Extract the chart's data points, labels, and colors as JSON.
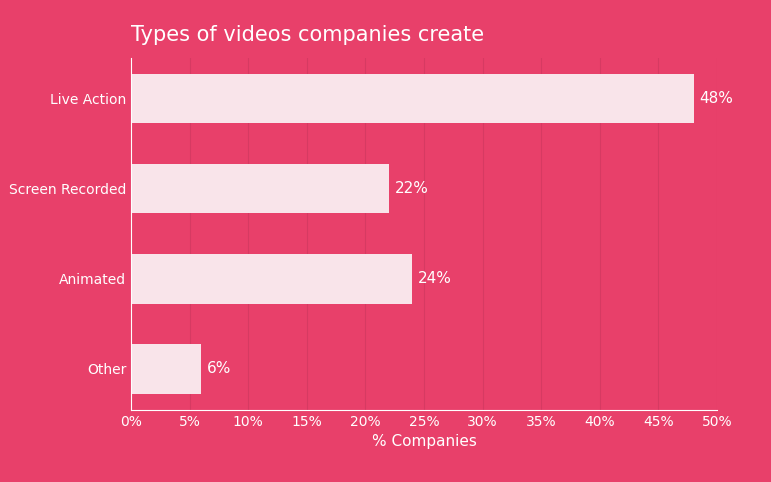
{
  "title": "Types of videos companies create",
  "categories": [
    "Other",
    "Animated",
    "Screen Recorded",
    "Live Action"
  ],
  "values": [
    6,
    24,
    22,
    48
  ],
  "bar_color": "#f9e4ea",
  "background_color": "#e8406a",
  "grid_color": "#d63a62",
  "text_color": "#ffffff",
  "xlabel": "% Companies",
  "xlim": [
    0,
    50
  ],
  "xticks": [
    0,
    5,
    10,
    15,
    20,
    25,
    30,
    35,
    40,
    45,
    50
  ],
  "title_fontsize": 15,
  "label_fontsize": 11,
  "tick_fontsize": 10,
  "annotation_fontsize": 11,
  "bar_height": 0.55
}
